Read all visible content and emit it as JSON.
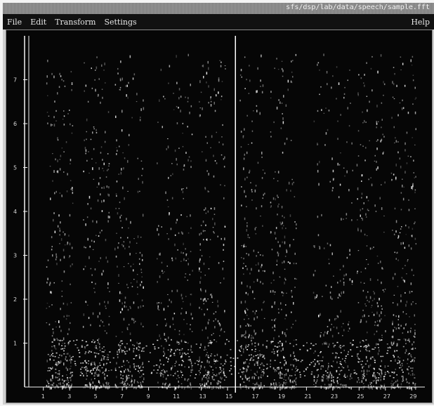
{
  "window": {
    "title": "sfs/dsp/lab/data/speech/sample.fft"
  },
  "menu": {
    "file": "File",
    "edit": "Edit",
    "transform": "Transform",
    "settings": "Settings",
    "help": "Help"
  },
  "chart_data": {
    "type": "heatmap",
    "description_free": true,
    "y_ticks": [
      "1",
      "2",
      "3",
      "4",
      "5",
      "6",
      "7"
    ],
    "x_ticks": [
      "1",
      "3",
      "5",
      "7",
      "9",
      "11",
      "13",
      "15",
      "17",
      "19",
      "21",
      "23",
      "25",
      "27",
      "29"
    ],
    "ylim": [
      0,
      8
    ],
    "xlim": [
      0,
      30
    ],
    "cursor_x": 15.6,
    "colors": {
      "background": "#060606",
      "mark": "#e8e8e8",
      "axis": "#f2f2f2"
    }
  }
}
